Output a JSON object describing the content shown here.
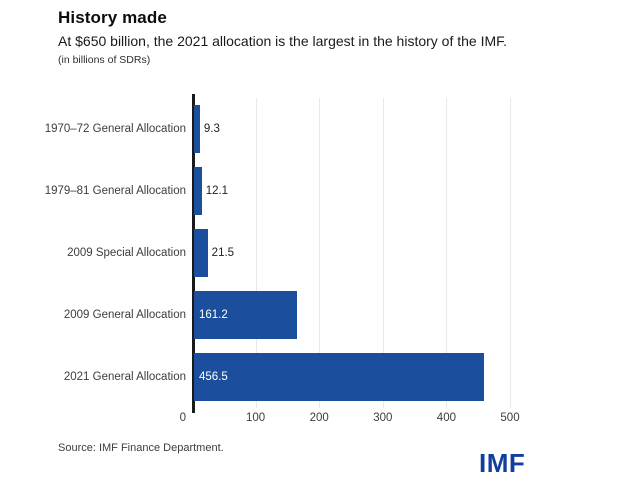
{
  "chart_data": {
    "type": "bar",
    "orientation": "horizontal",
    "title": "History made",
    "subtitle": "At $650 billion, the 2021 allocation is the largest in the history of the IMF.",
    "unit_note": "(in billions of SDRs)",
    "categories": [
      "1970–72 General Allocation",
      "1979–81 General Allocation",
      "2009 Special Allocation",
      "2009 General Allocation",
      "2021 General Allocation"
    ],
    "values": [
      9.3,
      12.1,
      21.5,
      161.2,
      456.5
    ],
    "value_labels": [
      "9.3",
      "12.1",
      "21.5",
      "161.2",
      "456.5"
    ],
    "x_ticks": [
      0,
      100,
      200,
      300,
      400,
      500
    ],
    "xlim": [
      0,
      520
    ],
    "grid": true,
    "legend_position": "none",
    "bar_color": "#1b4f9e",
    "axis_color": "#1a1a1a",
    "gridline_color": "#e9e9e9"
  },
  "footer": {
    "source": "Source: IMF Finance Department.",
    "logo": "IMF",
    "logo_color": "#123f9e"
  }
}
